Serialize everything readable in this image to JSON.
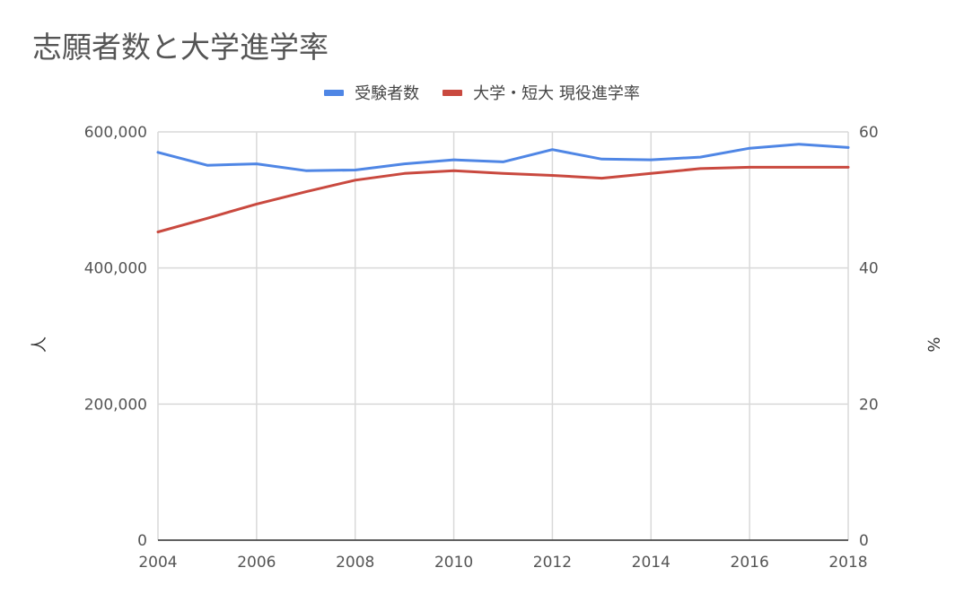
{
  "chart_data": {
    "type": "line",
    "title": "志願者数と大学進学率",
    "x": [
      2004,
      2005,
      2006,
      2007,
      2008,
      2009,
      2010,
      2011,
      2012,
      2013,
      2014,
      2015,
      2016,
      2017,
      2018
    ],
    "x_ticks": [
      "2004",
      "2006",
      "2008",
      "2010",
      "2012",
      "2014",
      "2016",
      "2018"
    ],
    "xlim": [
      2004,
      2018
    ],
    "series": [
      {
        "name": "受験者数",
        "axis": "left",
        "color": "#4f86e5",
        "values": [
          570000,
          551000,
          553000,
          543000,
          544000,
          553000,
          559000,
          556000,
          574000,
          560000,
          559000,
          563000,
          576000,
          582000,
          577000
        ]
      },
      {
        "name": "大学・短大 現役進学率",
        "axis": "right",
        "color": "#c9493f",
        "values": [
          45.3,
          47.3,
          49.4,
          51.2,
          52.9,
          53.9,
          54.3,
          53.9,
          53.6,
          53.2,
          53.9,
          54.6,
          54.8,
          54.8,
          54.8
        ]
      }
    ],
    "y_left": {
      "label": "人",
      "ylim": [
        0,
        600000
      ],
      "ticks": [
        "0",
        "200,000",
        "400,000",
        "600,000"
      ]
    },
    "y_right": {
      "label": "%",
      "ylim": [
        0,
        60
      ],
      "ticks": [
        "0",
        "20",
        "40",
        "60"
      ]
    },
    "grid": true,
    "legend_position": "top"
  }
}
